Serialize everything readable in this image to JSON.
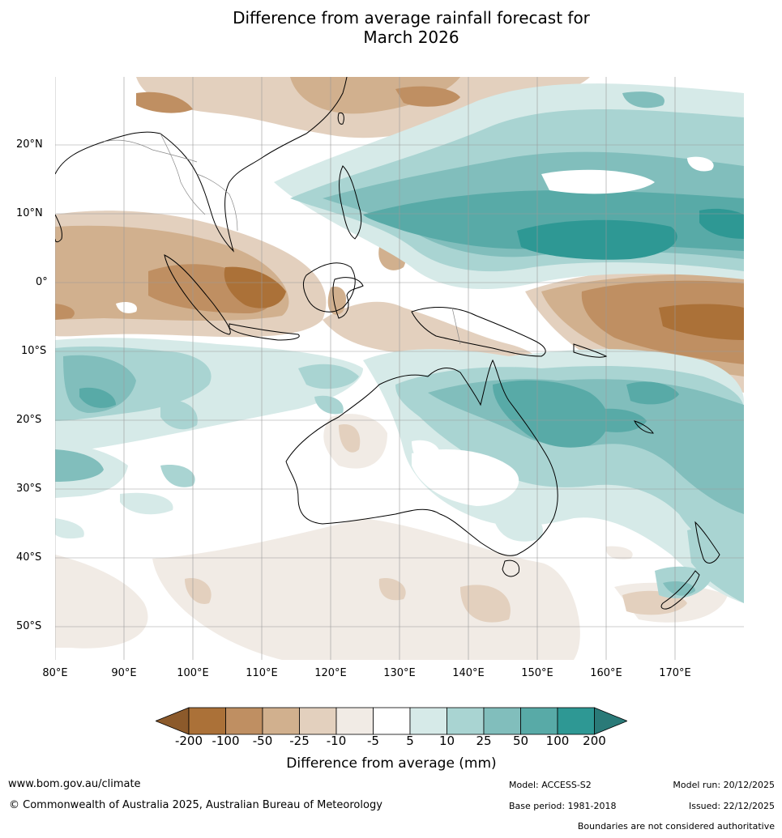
{
  "title": {
    "line1": "Difference from average rainfall forecast for",
    "line2": "March 2026"
  },
  "map": {
    "lat_labels": [
      "20°N",
      "10°N",
      "0°",
      "10°S",
      "20°S",
      "30°S",
      "40°S",
      "50°S"
    ],
    "lon_labels": [
      "80°E",
      "90°E",
      "100°E",
      "110°E",
      "120°E",
      "130°E",
      "140°E",
      "150°E",
      "160°E",
      "170°E"
    ]
  },
  "legend": {
    "ticks": [
      "-200",
      "-100",
      "-50",
      "-25",
      "-10",
      "-5",
      "5",
      "10",
      "25",
      "50",
      "100",
      "200"
    ],
    "label": "Difference from average (mm)",
    "colors": {
      "below_min": "#8c5a2b",
      "bins": [
        "#ab7138",
        "#bf8f62",
        "#d1b08e",
        "#e3d0be",
        "#f1ebe5",
        "#ffffff",
        "#d6eae8",
        "#a9d4d2",
        "#81bebc",
        "#58aaa7",
        "#2e9894"
      ],
      "above_max": "#2a7a78"
    }
  },
  "footer": {
    "url": "www.bom.gov.au/climate",
    "copyright": "© Commonwealth of Australia 2025, Australian Bureau of Meteorology",
    "model": "Model: ACCESS-S2",
    "base_period": "Base period: 1981-2018",
    "model_run": "Model run: 20/12/2025",
    "issued": "Issued: 22/12/2025",
    "disclaimer": "Boundaries are not considered authoritative"
  }
}
